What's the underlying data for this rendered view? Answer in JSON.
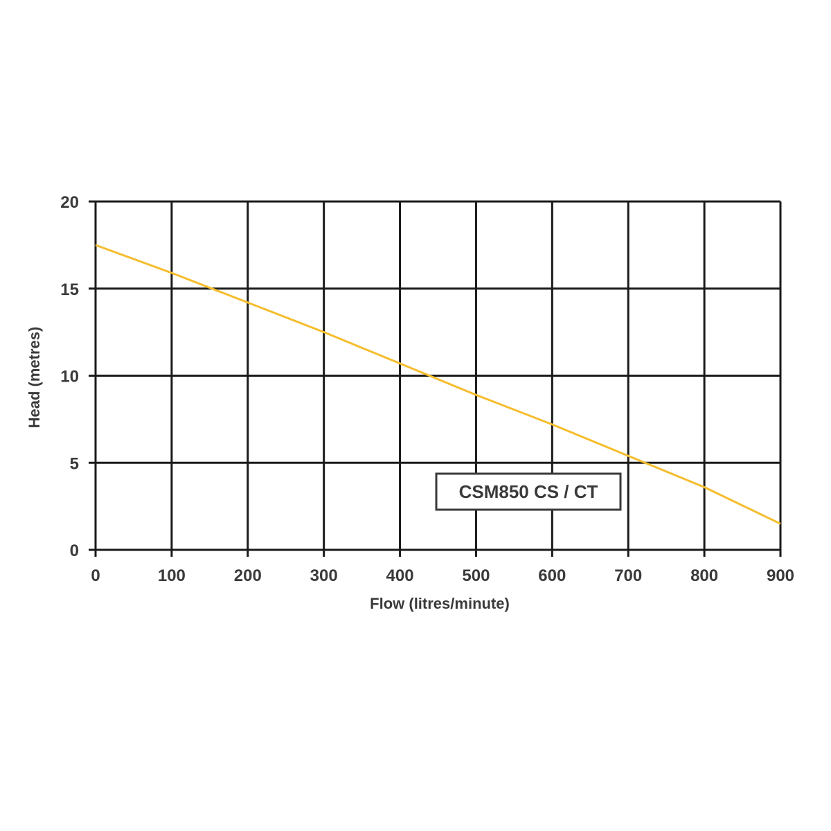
{
  "chart_data": {
    "type": "line",
    "title": "",
    "xlabel": "Flow (litres/minute)",
    "ylabel": "Head (metres)",
    "xlim": [
      0,
      900
    ],
    "ylim": [
      0,
      20
    ],
    "x_ticks": [
      "0",
      "100",
      "200",
      "300",
      "400",
      "500",
      "600",
      "700",
      "800",
      "900"
    ],
    "y_ticks": [
      "0",
      "5",
      "10",
      "15",
      "20"
    ],
    "grid": true,
    "legend": {
      "label": "CSM850 CS / CT",
      "placement": "bottom-right"
    },
    "series": [
      {
        "name": "CSM850 CS / CT",
        "color": "#f5bd2e",
        "x": [
          0,
          100,
          200,
          300,
          400,
          500,
          600,
          700,
          800,
          900
        ],
        "y": [
          17.5,
          15.9,
          14.2,
          12.5,
          10.7,
          8.9,
          7.2,
          5.4,
          3.6,
          1.5
        ]
      }
    ],
    "colors": {
      "grid": "#1a1a1a",
      "text": "#3a3a3a",
      "line": "#f5bd2e"
    }
  }
}
